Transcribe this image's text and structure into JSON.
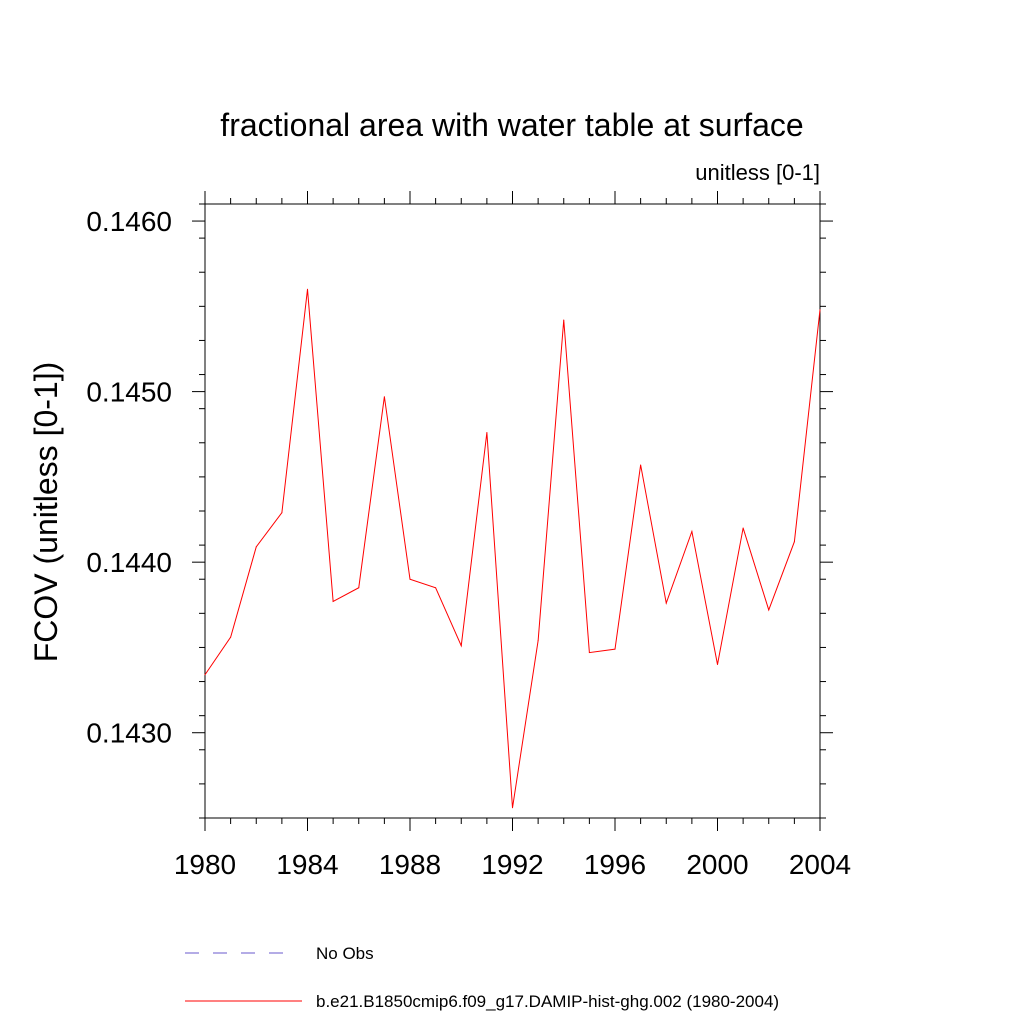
{
  "chart_data": {
    "type": "line",
    "title": "fractional area with water table at surface",
    "subtitle": "unitless [0-1]",
    "xlabel": "",
    "ylabel": "FCOV  (unitless [0-1])",
    "xlim": [
      1980,
      2004
    ],
    "ylim": [
      0.1425,
      0.1461
    ],
    "x_ticks": [
      "1980",
      "1984",
      "1988",
      "1992",
      "1996",
      "2000",
      "2004"
    ],
    "y_ticks": [
      "0.1430",
      "0.1440",
      "0.1450",
      "0.1460"
    ],
    "grid": false,
    "legend_position": "bottom",
    "series": [
      {
        "name": "b.e21.B1850cmip6.f09_g17.DAMIP-hist-ghg.002 (1980-2004)",
        "color": "#ff0000",
        "style": "solid",
        "x": [
          1980,
          1981,
          1982,
          1983,
          1984,
          1985,
          1986,
          1987,
          1988,
          1989,
          1990,
          1991,
          1992,
          1993,
          1994,
          1995,
          1996,
          1997,
          1998,
          1999,
          2000,
          2001,
          2002,
          2003,
          2004
        ],
        "values": [
          0.14334,
          0.14356,
          0.14409,
          0.14429,
          0.1456,
          0.14377,
          0.14385,
          0.14497,
          0.1439,
          0.14385,
          0.14351,
          0.14476,
          0.14256,
          0.14354,
          0.14542,
          0.14347,
          0.14349,
          0.14457,
          0.14376,
          0.14418,
          0.1434,
          0.1442,
          0.14372,
          0.14412,
          0.14548
        ]
      }
    ],
    "legend": [
      {
        "label": "No Obs",
        "color": "#6a5acd",
        "style": "dashed"
      },
      {
        "label": "b.e21.B1850cmip6.f09_g17.DAMIP-hist-ghg.002 (1980-2004)",
        "color": "#ff0000",
        "style": "solid"
      }
    ]
  }
}
